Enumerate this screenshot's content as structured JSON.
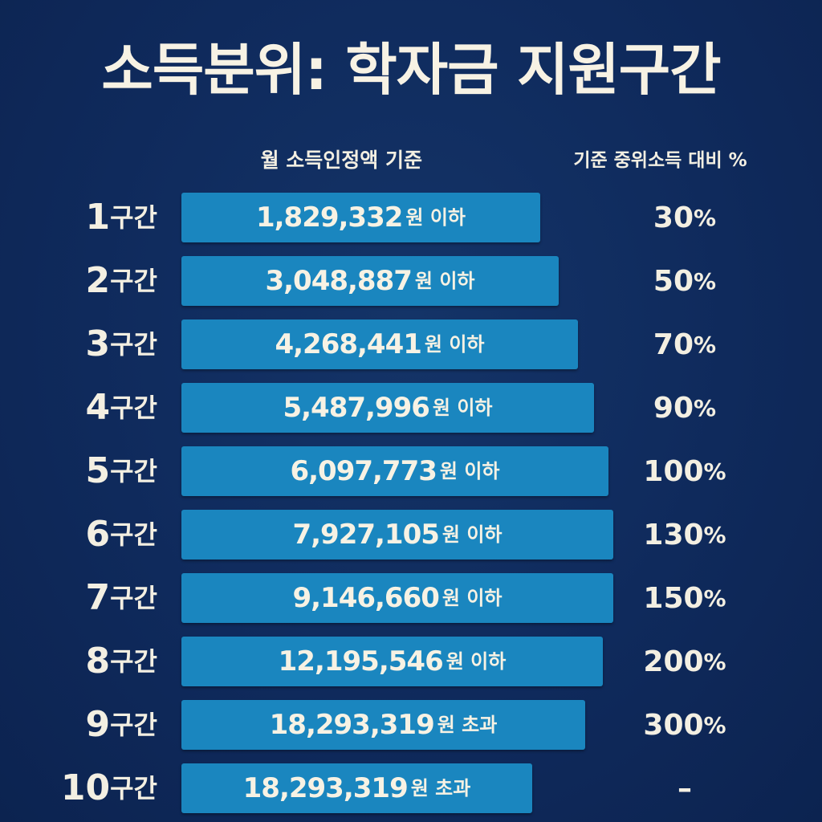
{
  "chart_data": {
    "type": "bar",
    "title": "소득분위: 학자금 지원구간",
    "income_header": "월 소득인정액 기준",
    "ratio_header": "기준 중위소득 대비 %",
    "bar_color": "#1a86bf",
    "background_color": "#0f2a5c",
    "unit_label": "구간",
    "rows": [
      {
        "num": "1",
        "amount": "1,829,332",
        "cond": "원 이하",
        "value": 1829332,
        "ratio": "30",
        "ratio_unit": "%"
      },
      {
        "num": "2",
        "amount": "3,048,887",
        "cond": "원 이하",
        "value": 3048887,
        "ratio": "50",
        "ratio_unit": "%"
      },
      {
        "num": "3",
        "amount": "4,268,441",
        "cond": "원 이하",
        "value": 4268441,
        "ratio": "70",
        "ratio_unit": "%"
      },
      {
        "num": "4",
        "amount": "5,487,996",
        "cond": "원 이하",
        "value": 5487996,
        "ratio": "90",
        "ratio_unit": "%"
      },
      {
        "num": "5",
        "amount": "6,097,773",
        "cond": "원 이하",
        "value": 6097773,
        "ratio": "100",
        "ratio_unit": "%"
      },
      {
        "num": "6",
        "amount": "7,927,105",
        "cond": "원 이하",
        "value": 7927105,
        "ratio": "130",
        "ratio_unit": "%"
      },
      {
        "num": "7",
        "amount": "9,146,660",
        "cond": "원 이하",
        "value": 9146660,
        "ratio": "150",
        "ratio_unit": "%"
      },
      {
        "num": "8",
        "amount": "12,195,546",
        "cond": "원 이하",
        "value": 12195546,
        "ratio": "200",
        "ratio_unit": "%"
      },
      {
        "num": "9",
        "amount": "18,293,319",
        "cond": "원 초과",
        "value": 18293319,
        "ratio": "300",
        "ratio_unit": "%"
      },
      {
        "num": "10",
        "amount": "18,293,319",
        "cond": "원 초과",
        "value": 18293319,
        "ratio": "–",
        "ratio_unit": ""
      }
    ]
  }
}
